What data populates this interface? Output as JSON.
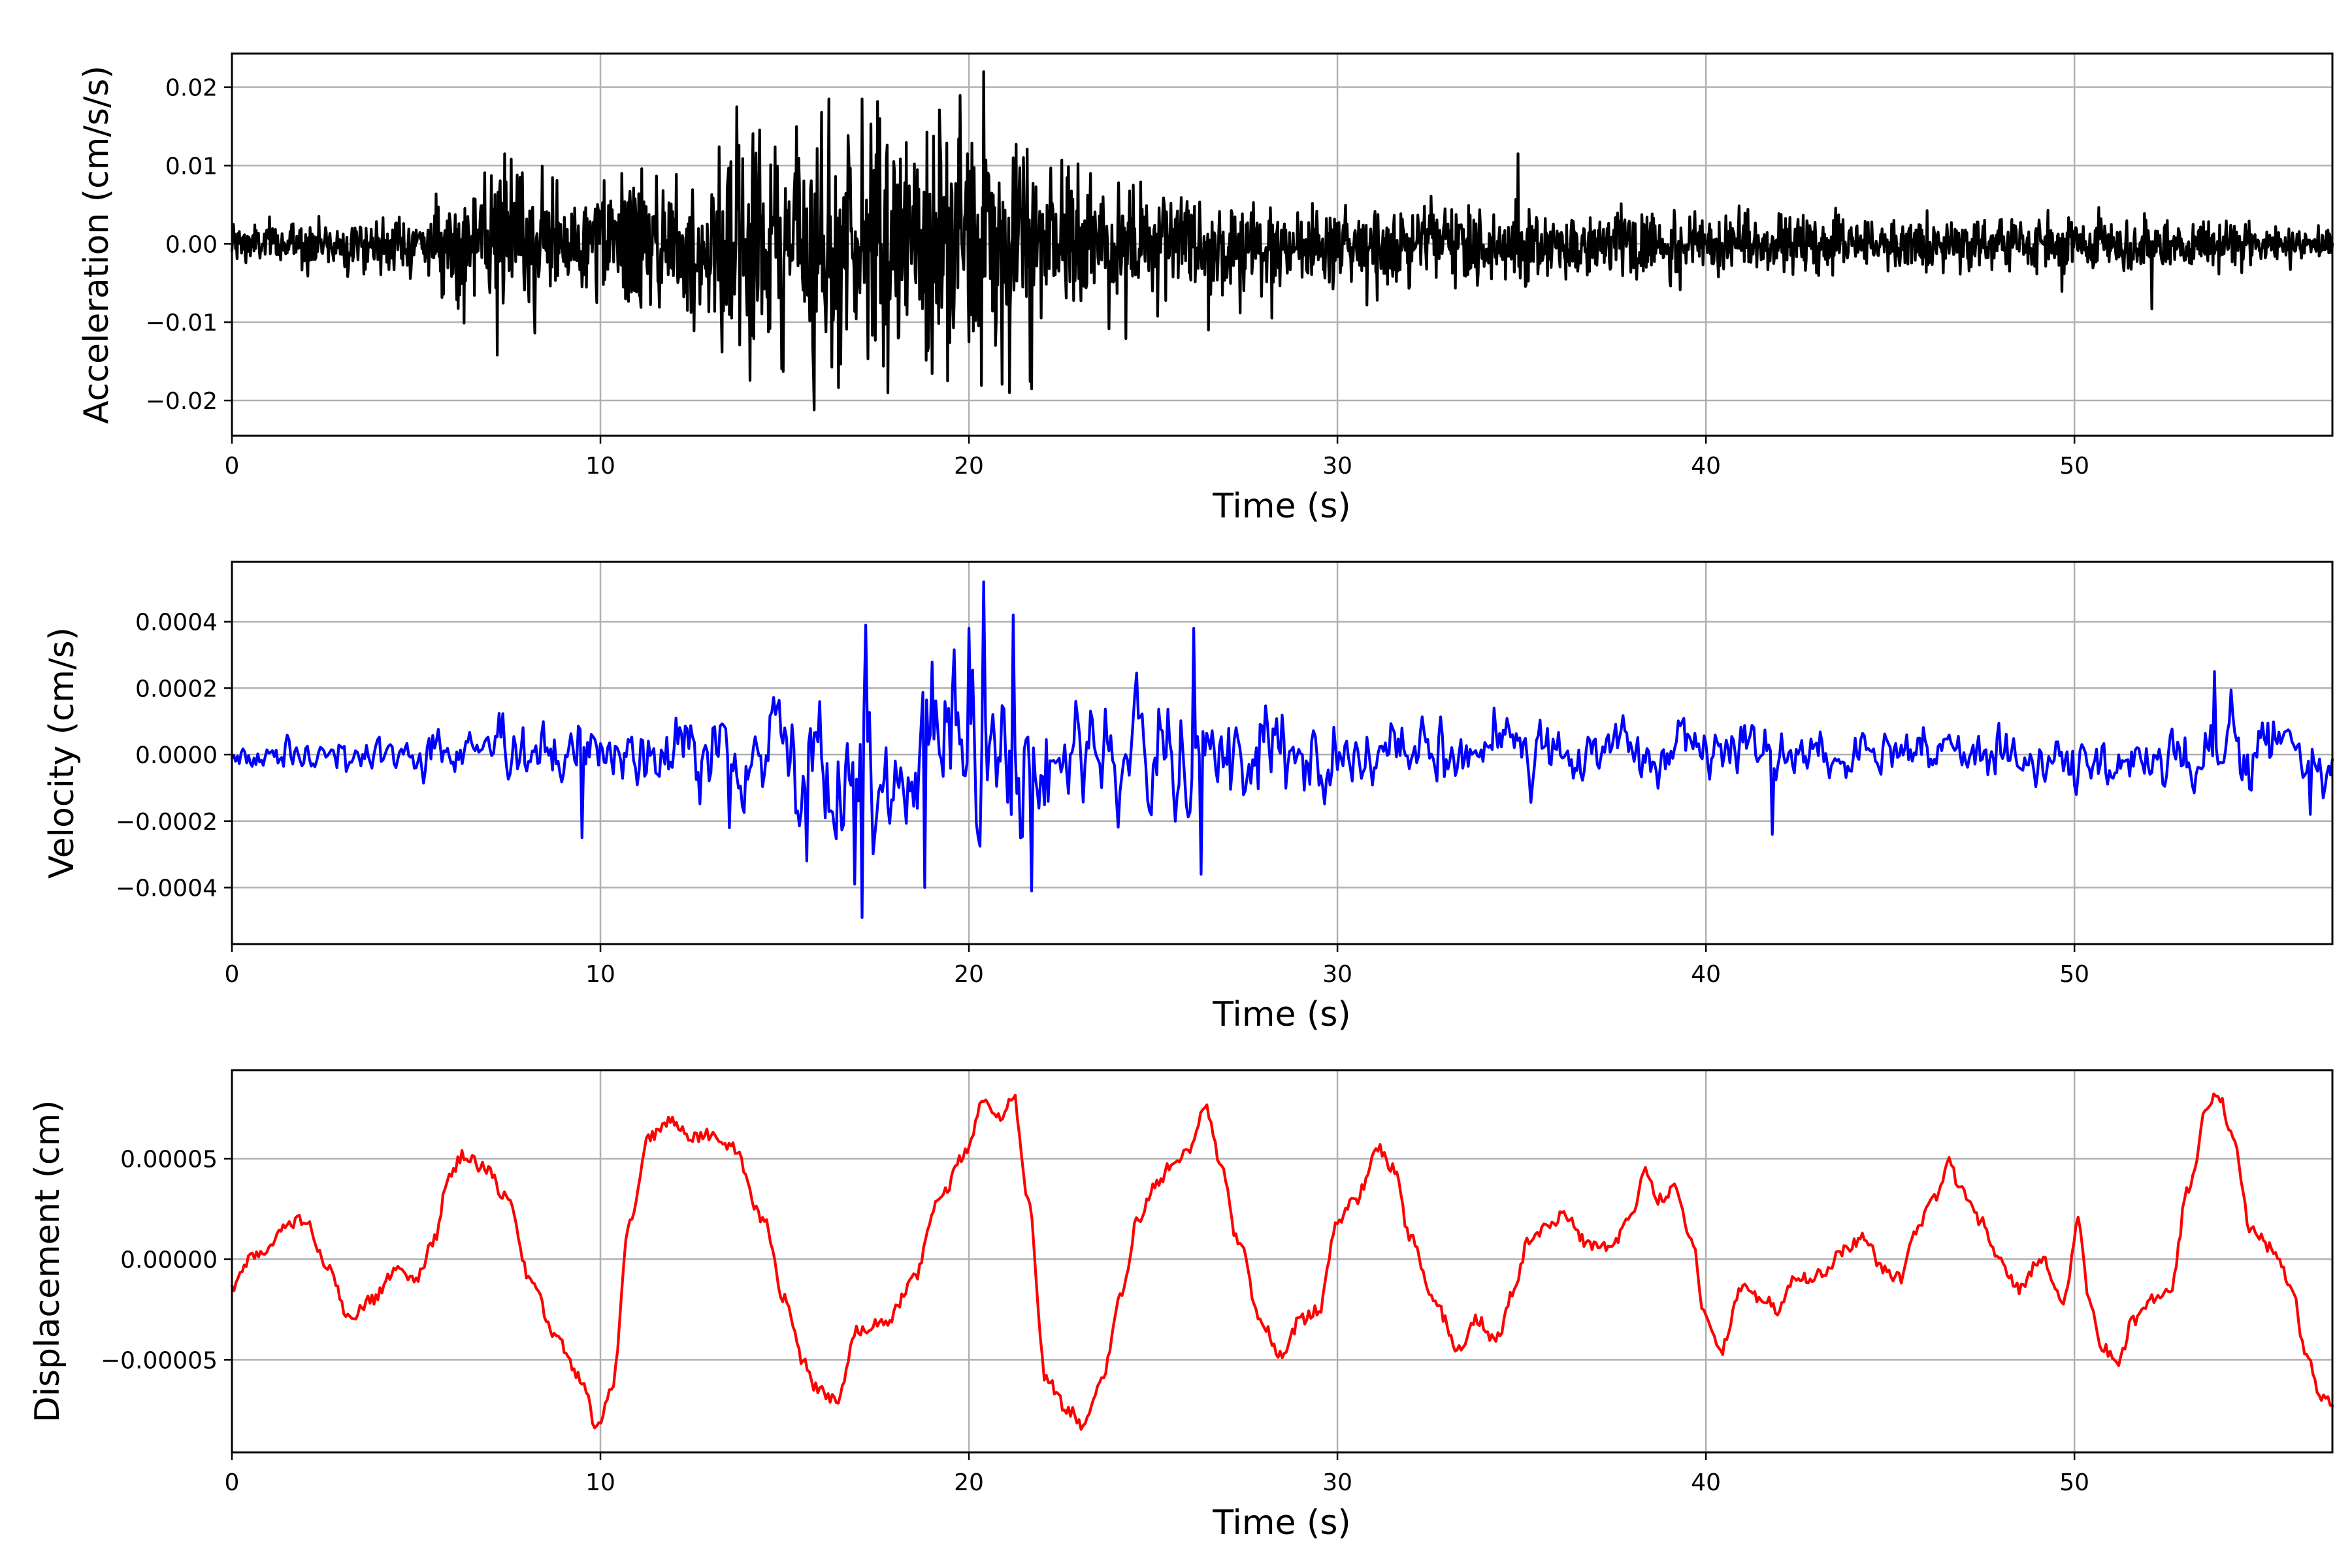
{
  "chart_data": [
    {
      "type": "line",
      "id": "acceleration",
      "xlabel": "Time (s)",
      "ylabel": "Acceleration (cm/s/s)",
      "xlim": [
        0,
        57
      ],
      "ylim": [
        -0.0245,
        0.0243
      ],
      "xticks": [
        0,
        10,
        20,
        30,
        40,
        50
      ],
      "xtick_labels": [
        "0",
        "10",
        "20",
        "30",
        "40",
        "50"
      ],
      "yticks": [
        -0.02,
        -0.01,
        0.0,
        0.01,
        0.02
      ],
      "ytick_labels": [
        "−0.02",
        "−0.01",
        "0.00",
        "0.01",
        "0.02"
      ],
      "grid": true,
      "series": [
        {
          "color": "#000000",
          "envelope": [
            [
              0,
              0.0035
            ],
            [
              5,
              0.0045
            ],
            [
              7.3,
              0.0115
            ],
            [
              9.5,
              0.009
            ],
            [
              12,
              0.013
            ],
            [
              13.7,
              0.0175
            ],
            [
              15.8,
              0.0185
            ],
            [
              17.3,
              0.0185
            ],
            [
              20.4,
              0.022
            ],
            [
              22,
              0.014
            ],
            [
              25,
              0.0095
            ],
            [
              28,
              0.0075
            ],
            [
              32,
              0.006
            ],
            [
              35,
              0.006
            ],
            [
              40,
              0.005
            ],
            [
              45,
              0.0045
            ],
            [
              50,
              0.005
            ],
            [
              53,
              0.004
            ],
            [
              57,
              0.003
            ]
          ],
          "peaks": [
            [
              7.2,
              -0.0142
            ],
            [
              7.4,
              0.0115
            ],
            [
              13.3,
              -0.0138
            ],
            [
              13.7,
              0.0175
            ],
            [
              15.8,
              -0.0212
            ],
            [
              16.0,
              0.0168
            ],
            [
              16.2,
              0.0185
            ],
            [
              17.1,
              0.0185
            ],
            [
              17.8,
              -0.019
            ],
            [
              20.0,
              -0.0125
            ],
            [
              20.4,
              0.022
            ],
            [
              21.1,
              -0.019
            ],
            [
              21.7,
              -0.0185
            ],
            [
              23.3,
              0.009
            ],
            [
              26.5,
              -0.011
            ],
            [
              34.9,
              0.0115
            ],
            [
              52.1,
              -0.0083
            ]
          ]
        }
      ]
    },
    {
      "type": "line",
      "id": "velocity",
      "xlabel": "Time (s)",
      "ylabel": "Velocity (cm/s)",
      "xlim": [
        0,
        57
      ],
      "ylim": [
        -0.00057,
        0.00058
      ],
      "xticks": [
        0,
        10,
        20,
        30,
        40,
        50
      ],
      "xtick_labels": [
        "0",
        "10",
        "20",
        "30",
        "40",
        "50"
      ],
      "yticks": [
        -0.0004,
        -0.0002,
        0.0,
        0.0002,
        0.0004
      ],
      "ytick_labels": [
        "−0.0004",
        "−0.0002",
        "0.0000",
        "0.0002",
        "0.0004"
      ],
      "grid": true,
      "series": [
        {
          "color": "#0000ff",
          "envelope": [
            [
              0,
              9e-05
            ],
            [
              5,
              0.00011
            ],
            [
              7,
              0.00013
            ],
            [
              9,
              0.00016
            ],
            [
              12,
              0.00018
            ],
            [
              14,
              0.00022
            ],
            [
              16,
              0.00032
            ],
            [
              17.3,
              0.0004
            ],
            [
              20.3,
              0.00045
            ],
            [
              22,
              0.0003
            ],
            [
              26,
              0.00028
            ],
            [
              29,
              0.0002
            ],
            [
              31,
              0.00018
            ],
            [
              35,
              0.00015
            ],
            [
              40,
              0.00014
            ],
            [
              45,
              0.00013
            ],
            [
              50,
              0.00013
            ],
            [
              54,
              0.00017
            ],
            [
              57,
              0.00012
            ]
          ],
          "peaks": [
            [
              9.5,
              -0.00025
            ],
            [
              13.5,
              -0.00022
            ],
            [
              15.6,
              -0.00032
            ],
            [
              16.9,
              -0.00039
            ],
            [
              17.1,
              -0.00049
            ],
            [
              17.2,
              0.00039
            ],
            [
              18.8,
              -0.0004
            ],
            [
              20.0,
              0.00038
            ],
            [
              20.4,
              0.00052
            ],
            [
              21.2,
              0.00042
            ],
            [
              21.7,
              -0.00041
            ],
            [
              26.3,
              -0.00036
            ],
            [
              26.1,
              0.00038
            ],
            [
              41.8,
              -0.00024
            ],
            [
              53.8,
              0.00025
            ],
            [
              56.4,
              -0.00018
            ]
          ]
        }
      ]
    },
    {
      "type": "line",
      "id": "displacement",
      "xlabel": "Time (s)",
      "ylabel": "Displacement (cm)",
      "xlim": [
        0,
        57
      ],
      "ylim": [
        -9.6e-05,
        9.4e-05
      ],
      "xticks": [
        0,
        10,
        20,
        30,
        40,
        50
      ],
      "xtick_labels": [
        "0",
        "10",
        "20",
        "30",
        "40",
        "50"
      ],
      "yticks": [
        -5e-05,
        0.0,
        5e-05
      ],
      "ytick_labels": [
        "−0.00005",
        "0.00000",
        "0.00005"
      ],
      "grid": true,
      "series": [
        {
          "color": "#ff0000",
          "x": [
            0,
            0.5,
            1.0,
            1.5,
            2.0,
            2.6,
            3.2,
            3.8,
            4.5,
            5.0,
            5.5,
            5.9,
            6.3,
            6.8,
            7.5,
            8.1,
            8.8,
            9.5,
            9.9,
            10.3,
            10.8,
            11.3,
            11.9,
            12.5,
            13.0,
            13.6,
            14.4,
            15.0,
            15.5,
            15.9,
            16.4,
            17.0,
            17.8,
            18.5,
            19.2,
            19.9,
            20.4,
            20.8,
            21.2,
            21.6,
            22.1,
            22.7,
            23.1,
            23.6,
            24.1,
            24.6,
            25.1,
            25.6,
            26.0,
            26.4,
            26.8,
            27.3,
            27.9,
            28.5,
            29.0,
            29.5,
            30.0,
            30.5,
            31.1,
            31.5,
            32.0,
            32.6,
            33.3,
            33.8,
            34.3,
            34.8,
            35.2,
            35.6,
            36.2,
            36.8,
            37.4,
            38.0,
            38.3,
            38.7,
            39.2,
            39.6,
            40.0,
            40.4,
            41.0,
            41.6,
            42.0,
            42.4,
            43.1,
            43.8,
            44.3,
            44.8,
            45.3,
            45.7,
            46.2,
            46.6,
            46.9,
            47.4,
            47.9,
            48.5,
            49.1,
            49.7,
            50.1,
            50.4,
            50.8,
            51.2,
            51.6,
            52.1,
            52.6,
            53.1,
            53.6,
            53.9,
            54.3,
            54.8,
            55.4,
            55.9,
            56.3,
            56.7,
            57.0
          ],
          "y": [
            -1.5e-05,
            0.0,
            5e-06,
            1.8e-05,
            2e-05,
            -5e-06,
            -3e-05,
            -2e-05,
            -5e-06,
            -1e-05,
            1e-05,
            4.2e-05,
            5.2e-05,
            4.6e-05,
            3e-05,
            -1e-05,
            -4e-05,
            -6e-05,
            -8.3e-05,
            -6.5e-05,
            2e-05,
            6e-05,
            6.8e-05,
            6e-05,
            6.2e-05,
            5.5e-05,
            2e-05,
            -2e-05,
            -5e-05,
            -6.5e-05,
            -7e-05,
            -3.5e-05,
            -3e-05,
            -1e-05,
            3e-05,
            5.2e-05,
            7.8e-05,
            7e-05,
            8.2e-05,
            3e-05,
            -6e-05,
            -7.5e-05,
            -8.2e-05,
            -6e-05,
            -2e-05,
            2e-05,
            3.8e-05,
            5e-05,
            5.5e-05,
            7.8e-05,
            5e-05,
            1e-05,
            -3e-05,
            -4.8e-05,
            -3e-05,
            -2.5e-05,
            2e-05,
            3e-05,
            5.5e-05,
            4.5e-05,
            1e-05,
            -2e-05,
            -4.5e-05,
            -3e-05,
            -4e-05,
            -1.5e-05,
            1e-05,
            1.5e-05,
            2.2e-05,
            8e-06,
            5e-06,
            2e-05,
            4.5e-05,
            3e-05,
            3.5e-05,
            1e-05,
            -3e-05,
            -4.5e-05,
            -1.5e-05,
            -2e-05,
            -2.5e-05,
            -1e-05,
            -8e-06,
            5e-06,
            1.2e-05,
            -5e-06,
            -1e-05,
            1.5e-05,
            3e-05,
            4.8e-05,
            3.5e-05,
            2e-05,
            2e-06,
            -1.5e-05,
            0.0,
            -2e-05,
            1.8e-05,
            -2e-05,
            -4.5e-05,
            -5e-05,
            -3e-05,
            -2e-05,
            -1.5e-05,
            3.5e-05,
            7.5e-05,
            8.2e-05,
            6e-05,
            1.5e-05,
            5e-06,
            -1.5e-05,
            -5e-05,
            -6.8e-05,
            -7.3e-05
          ]
        }
      ]
    }
  ]
}
